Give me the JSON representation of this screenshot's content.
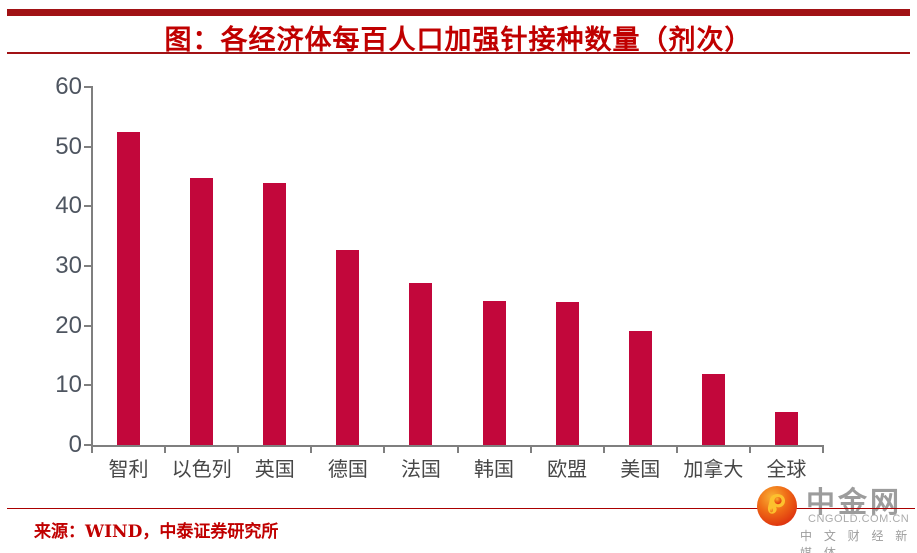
{
  "header": {
    "title": "图：各经济体每百人口加强针接种数量（剂次）",
    "title_color": "#C00000",
    "rule_color": "#A11215"
  },
  "chart_data": {
    "type": "bar",
    "title": "图：各经济体每百人口加强针接种数量（剂次）",
    "categories": [
      "智利",
      "以色列",
      "英国",
      "德国",
      "法国",
      "韩国",
      "欧盟",
      "美国",
      "加拿大",
      "全球"
    ],
    "values": [
      52.4,
      44.7,
      43.9,
      32.7,
      27.2,
      24.1,
      23.9,
      19.1,
      11.9,
      5.6
    ],
    "xlabel": "",
    "ylabel": "",
    "ylim": [
      0,
      60
    ],
    "yticks": [
      0,
      10,
      20,
      30,
      40,
      50,
      60
    ],
    "bar_color": "#C2073B",
    "axis_color": "#7F7F7F",
    "ytick_label_color": "#4E5560",
    "xtick_label_color": "#474747",
    "grid": false,
    "legend": "none"
  },
  "footer": {
    "source": "来源：WIND，中泰证券研究所"
  },
  "watermark": {
    "name": "中金网",
    "domain": "CNGOLD.COM.CN",
    "tagline": "中 文 财 经 新 媒 体"
  }
}
